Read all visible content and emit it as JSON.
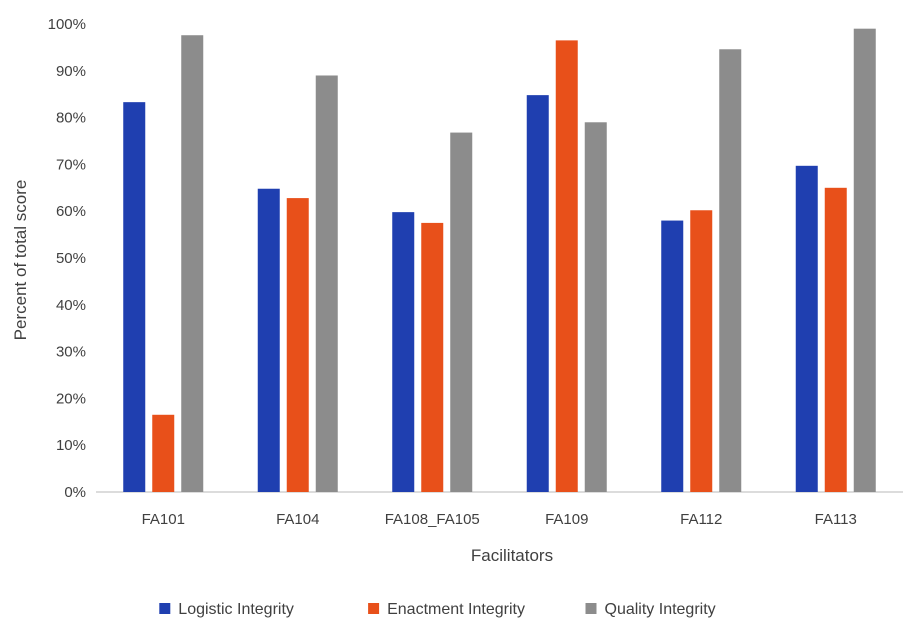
{
  "chart_data": {
    "type": "bar",
    "title": "",
    "xlabel": "Facilitators",
    "ylabel": "Percent of total score",
    "categories": [
      "FA101",
      "FA104",
      "FA108_FA105",
      "FA109",
      "FA112",
      "FA113"
    ],
    "series": [
      {
        "name": "Logistic Integrity",
        "color": "#1f3fb0",
        "values": [
          83.3,
          64.8,
          59.8,
          84.8,
          58.0,
          69.7
        ]
      },
      {
        "name": "Enactment Integrity",
        "color": "#e8501a",
        "values": [
          16.5,
          62.8,
          57.5,
          96.5,
          60.2,
          65.0
        ]
      },
      {
        "name": "Quality Integrity",
        "color": "#8c8c8c",
        "values": [
          97.6,
          89.0,
          76.8,
          79.0,
          94.6,
          99.0
        ]
      }
    ],
    "ylim": [
      0,
      100
    ],
    "yticks": [
      0,
      10,
      20,
      30,
      40,
      50,
      60,
      70,
      80,
      90,
      100
    ],
    "ytick_format": "%",
    "grid": false,
    "legend_position": "bottom"
  }
}
